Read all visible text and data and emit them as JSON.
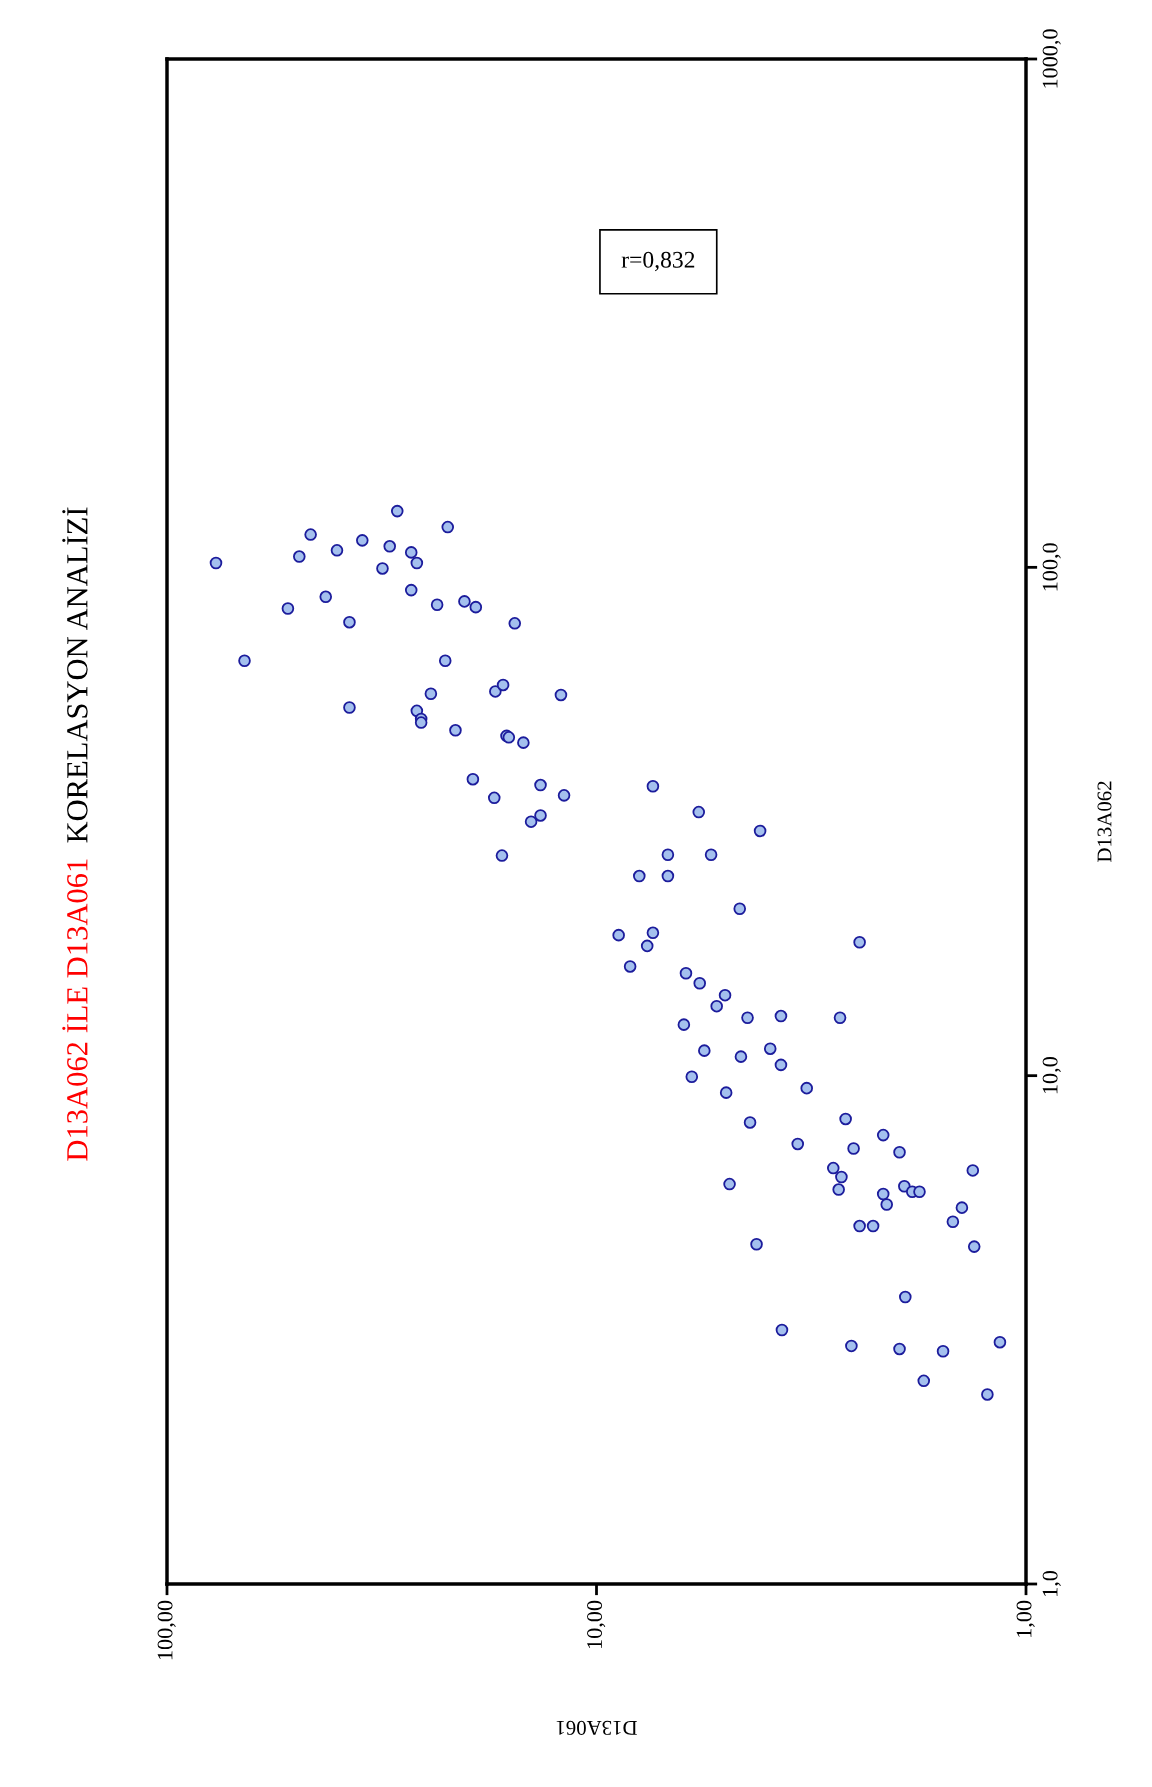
{
  "chart_data": {
    "type": "scatter",
    "title": "D13A062 İLE D13A061",
    "subtitle": "KORELASYON ANALİZİ",
    "xlabel": "D13A061",
    "ylabel": "D13A062",
    "annotations": [
      "r=0,832"
    ],
    "log": "xy",
    "grid": false,
    "legend": false,
    "marker": "circle",
    "xlim": [
      100,
      1
    ],
    "ylim": [
      1,
      1000
    ],
    "xticks": [
      {
        "value": 100,
        "label": "100,00"
      },
      {
        "value": 10,
        "label": "10,00"
      },
      {
        "value": 1,
        "label": "1,00"
      }
    ],
    "yticks": [
      {
        "value": 1,
        "label": "1,0"
      },
      {
        "value": 10,
        "label": "10,0"
      },
      {
        "value": 100,
        "label": "100,0"
      },
      {
        "value": 1000,
        "label": "1000,0"
      }
    ],
    "series": [
      {
        "color": "#a4c0ee",
        "x": [
          76.9,
          66.0,
          52.3,
          49.2,
          46.3,
          42.7,
          40.2,
          37.6,
          37.6,
          35.1,
          31.5,
          30.3,
          29.1,
          27.0,
          27.0,
          26.2,
          26.2,
          25.6,
          25.6,
          24.3,
          23.5,
          22.5,
          22.2,
          21.3,
          20.3,
          19.4,
          19.1,
          17.3,
          17.2,
          16.6,
          16.5,
          16.2,
          16.0,
          15.5,
          14.8,
          14.2,
          13.5,
          13.5,
          12.1,
          11.9,
          8.88,
          8.35,
          7.95,
          7.62,
          7.39,
          7.39,
          6.82,
          6.82,
          6.26,
          6.19,
          6.0,
          5.75,
          5.78,
          5.61,
          5.41,
          5.25,
          5.02,
          4.99,
          4.9,
          4.64,
          4.61,
          4.45,
          4.39,
          4.24,
          4.16,
          3.94,
          3.72,
          3.72,
          3.7,
          3.4,
          3.24,
          2.81,
          2.73,
          2.71,
          2.69,
          2.63,
          2.55,
          2.52,
          2.44,
          2.44,
          2.27,
          2.15,
          2.15,
          2.11,
          1.97,
          1.97,
          1.92,
          1.91,
          1.84,
          1.77,
          1.73,
          1.56,
          1.48,
          1.41,
          1.33,
          1.32,
          1.23,
          1.15
        ],
        "values": [
          102,
          65.5,
          83.0,
          105,
          116,
          87.5,
          108,
          78.0,
          53.0,
          113,
          99.5,
          110,
          129,
          107,
          90.2,
          102,
          52.2,
          50.3,
          49.5,
          56.4,
          84.4,
          65.5,
          120,
          47.8,
          85.7,
          38.3,
          83.5,
          35.2,
          57.0,
          27.1,
          58.7,
          46.6,
          46.3,
          77.6,
          45.2,
          31.6,
          37.3,
          32.5,
          56.1,
          35.6,
          18.9,
          16.4,
          24.7,
          18.0,
          19.1,
          37.1,
          27.2,
          24.7,
          12.6,
          15.9,
          9.95,
          15.2,
          33.0,
          11.2,
          27.2,
          13.7,
          14.4,
          9.26,
          6.12,
          21.3,
          10.9,
          13.0,
          8.09,
          4.66,
          30.3,
          11.3,
          13.1,
          10.5,
          3.16,
          7.34,
          9.45,
          6.58,
          5.97,
          13.0,
          6.32,
          8.22,
          2.94,
          7.19,
          5.06,
          18.3,
          5.06,
          7.64,
          5.85,
          5.58,
          7.07,
          2.9,
          6.06,
          3.67,
          5.91,
          5.91,
          2.51,
          2.87,
          5.16,
          5.5,
          6.51,
          4.61,
          2.36,
          2.99
        ]
      }
    ]
  }
}
